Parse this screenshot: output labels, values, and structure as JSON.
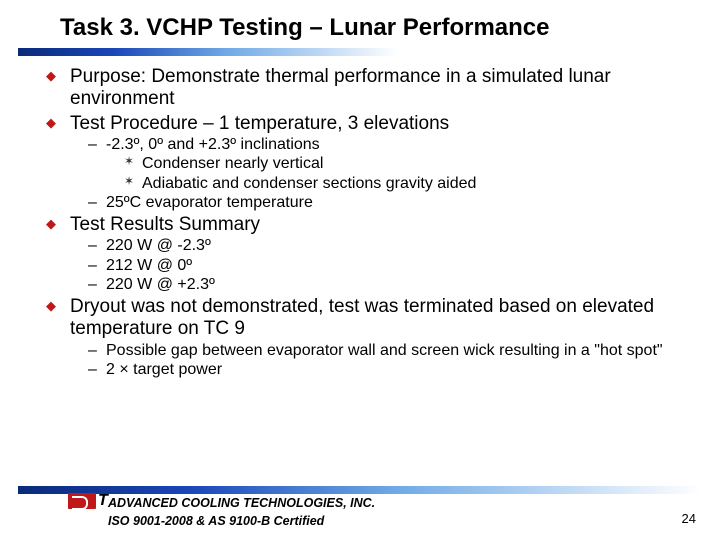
{
  "title": "Task 3. VCHP Testing – Lunar Performance",
  "bullets": {
    "purpose": "Purpose: Demonstrate thermal performance in a simulated lunar environment",
    "procedure": "Test Procedure – 1 temperature, 3 elevations",
    "procedure_sub": {
      "inclinations": "-2.3º, 0º and +2.3º inclinations",
      "condenser": "Condenser nearly vertical",
      "adiabatic": "Adiabatic and condenser sections gravity aided",
      "evap_temp": "25ºC evaporator temperature"
    },
    "results": "Test Results Summary",
    "results_sub": {
      "r1": "220 W @ -2.3º",
      "r2": "212 W @    0º",
      "r3": "220 W @ +2.3º"
    },
    "dryout": "Dryout was not demonstrated, test was terminated based on elevated temperature on TC 9",
    "dryout_sub": {
      "gap": "Possible gap between evaporator wall and screen wick resulting in a \"hot spot\"",
      "power": "2 × target power"
    }
  },
  "footer": {
    "company": "ADVANCED COOLING TECHNOLOGIES, INC.",
    "cert": "ISO 9001-2008 & AS 9100-B Certified",
    "page": "24"
  },
  "colors": {
    "bullet_red": "#c01818",
    "bar_dark": "#0a2a7a",
    "bar_mid": "#1a46b8",
    "bar_light": "#6fa9e6"
  }
}
